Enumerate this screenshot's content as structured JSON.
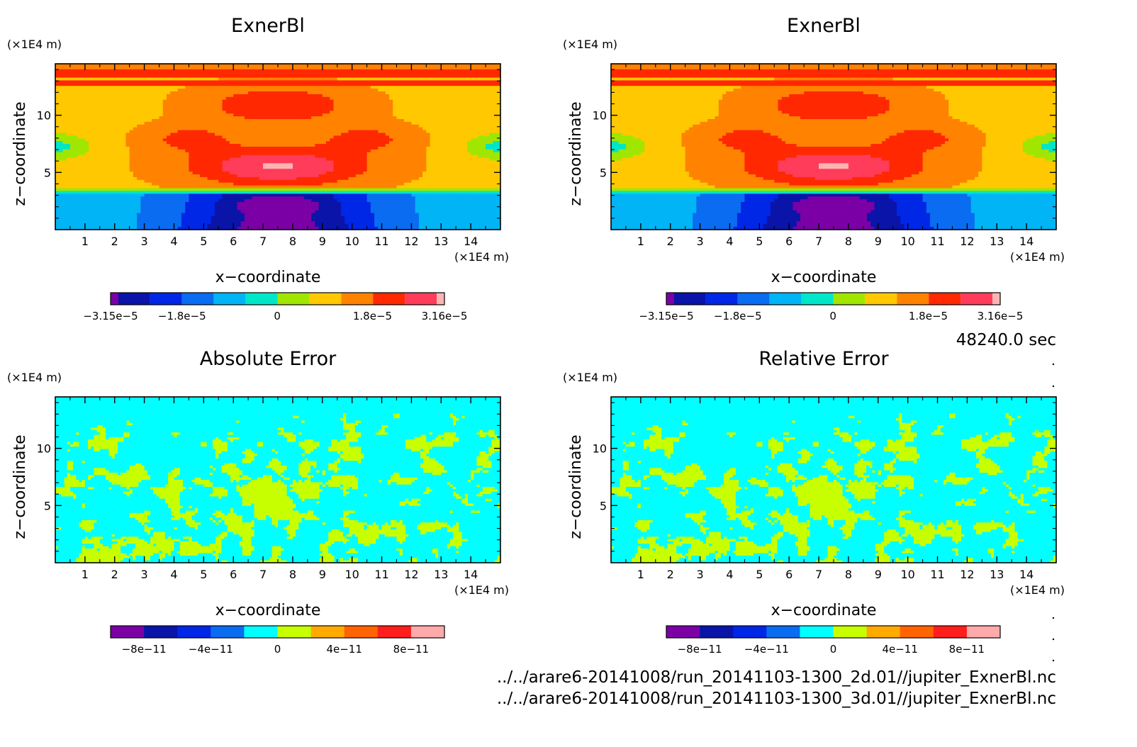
{
  "time_label": "48240.0 sec",
  "footer": {
    "file_2d": "../../arare6-20141008/run_20141103-1300_2d.01//jupiter_ExnerBl.nc",
    "file_3d": "../../arare6-20141008/run_20141103-1300_3d.01//jupiter_ExnerBl.nc"
  },
  "colors": {
    "field_levels": [
      "#7b00a6",
      "#0a14a8",
      "#0026e6",
      "#0a6cf0",
      "#00b4f5",
      "#00e6c8",
      "#a0e600",
      "#ffc800",
      "#ff8200",
      "#ff2800",
      "#ff3c5a",
      "#ffb4b4"
    ],
    "error_levels": [
      "#7b00a6",
      "#0a14a8",
      "#0026e6",
      "#0a6cf0",
      "#00ffff",
      "#c8ff00",
      "#ffaa00",
      "#ff6400",
      "#ff1e1e",
      "#ffaaaa"
    ]
  },
  "chart_data": [
    {
      "type": "heatmap",
      "title": "ExnerBl",
      "xlabel": "x−coordinate",
      "ylabel": "z−coordinate",
      "x_unit": "(×1E4 m)",
      "y_unit": "(×1E4 m)",
      "xlim": [
        0,
        15
      ],
      "ylim": [
        0,
        14.5
      ],
      "x_ticks": [
        "1",
        "2",
        "3",
        "4",
        "5",
        "6",
        "7",
        "8",
        "9",
        "10",
        "11",
        "12",
        "13",
        "14"
      ],
      "y_ticks": [
        "5",
        "10"
      ],
      "colorbar": {
        "min": -3.15e-05,
        "max": 3.16e-05,
        "labels": [
          "−3.15e−5",
          "−1.8e−5",
          "0",
          "1.8e−5",
          "3.16e−5"
        ]
      }
    },
    {
      "type": "heatmap",
      "title": "ExnerBl",
      "xlabel": "x−coordinate",
      "ylabel": "z−coordinate",
      "x_unit": "(×1E4 m)",
      "y_unit": "(×1E4 m)",
      "xlim": [
        0,
        15
      ],
      "ylim": [
        0,
        14.5
      ],
      "x_ticks": [
        "1",
        "2",
        "3",
        "4",
        "5",
        "6",
        "7",
        "8",
        "9",
        "10",
        "11",
        "12",
        "13",
        "14"
      ],
      "y_ticks": [
        "5",
        "10"
      ],
      "colorbar": {
        "min": -3.15e-05,
        "max": 3.16e-05,
        "labels": [
          "−3.15e−5",
          "−1.8e−5",
          "0",
          "1.8e−5",
          "3.16e−5"
        ]
      }
    },
    {
      "type": "heatmap",
      "title": "Absolute Error",
      "xlabel": "x−coordinate",
      "ylabel": "z−coordinate",
      "x_unit": "(×1E4 m)",
      "y_unit": "(×1E4 m)",
      "xlim": [
        0,
        15
      ],
      "ylim": [
        0,
        14.5
      ],
      "x_ticks": [
        "1",
        "2",
        "3",
        "4",
        "5",
        "6",
        "7",
        "8",
        "9",
        "10",
        "11",
        "12",
        "13",
        "14"
      ],
      "y_ticks": [
        "5",
        "10"
      ],
      "colorbar": {
        "min": -1e-10,
        "max": 1e-10,
        "labels": [
          "−8e−11",
          "−4e−11",
          "0",
          "4e−11",
          "8e−11"
        ]
      }
    },
    {
      "type": "heatmap",
      "title": "Relative Error",
      "xlabel": "x−coordinate",
      "ylabel": "z−coordinate",
      "x_unit": "(×1E4 m)",
      "y_unit": "(×1E4 m)",
      "xlim": [
        0,
        15
      ],
      "ylim": [
        0,
        14.5
      ],
      "x_ticks": [
        "1",
        "2",
        "3",
        "4",
        "5",
        "6",
        "7",
        "8",
        "9",
        "10",
        "11",
        "12",
        "13",
        "14"
      ],
      "y_ticks": [
        "5",
        "10"
      ],
      "colorbar": {
        "min": -1e-10,
        "max": 1e-10,
        "labels": [
          "−8e−11",
          "−4e−11",
          "0",
          "4e−11",
          "8e−11"
        ]
      }
    }
  ]
}
